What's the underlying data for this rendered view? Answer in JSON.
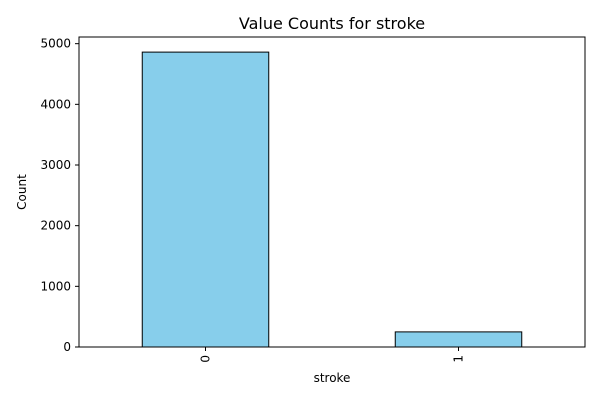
{
  "chart_data": {
    "type": "bar",
    "title": "Value Counts for stroke",
    "xlabel": "stroke",
    "ylabel": "Count",
    "categories": [
      "0",
      "1"
    ],
    "values": [
      4861,
      249
    ],
    "ylim": [
      0,
      5110
    ],
    "yticks": [
      0,
      1000,
      2000,
      3000,
      4000,
      5000
    ],
    "ytick_labels": [
      "0",
      "1000",
      "2000",
      "3000",
      "4000",
      "5000"
    ],
    "bar_color": "#87ceeb",
    "bar_edge_color": "#000000",
    "grid": false,
    "legend": "none",
    "xtick_rotation": "vertical"
  }
}
